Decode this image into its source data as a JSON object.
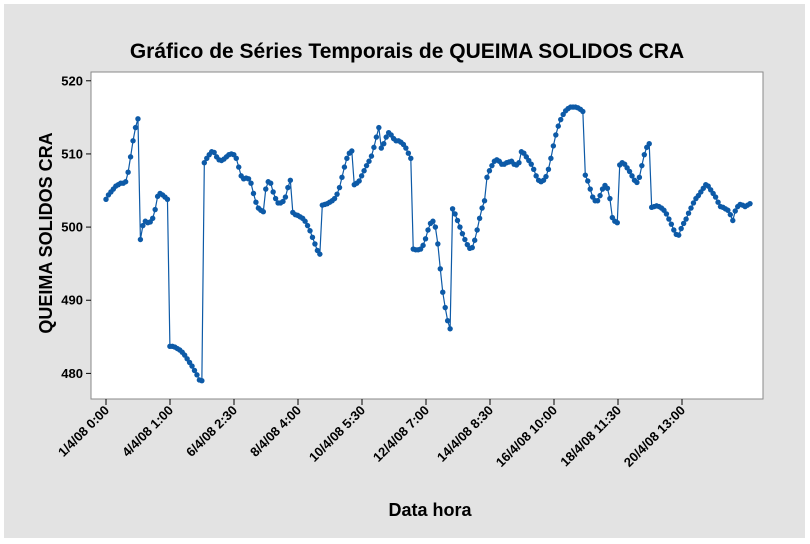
{
  "chart_data": {
    "type": "line",
    "title": "Gráfico de Séries Temporais de QUEIMA SOLIDOS CRA",
    "xlabel": "Data hora",
    "ylabel": "QUEIMA SOLIDOS CRA",
    "ylim": [
      476.5,
      521.2
    ],
    "yticks": [
      480,
      490,
      500,
      510,
      520
    ],
    "xticks": [
      "1/4/08 0:00",
      "4/4/08 1:00",
      "6/4/08 2:30",
      "8/4/08 4:00",
      "10/4/08 5:30",
      "12/4/08 7:00",
      "14/4/08 8:30",
      "16/4/08 10:00",
      "18/4/08 11:30",
      "20/4/08 13:00"
    ],
    "grid": false,
    "legend": "none",
    "marker": "circle",
    "series": [
      {
        "color": "#0d5aa7",
        "values": [
          503.8,
          504.4,
          504.8,
          505.2,
          505.6,
          505.8,
          506,
          506,
          506.2,
          507.5,
          509.6,
          511.8,
          513.6,
          514.8,
          498.3,
          500.2,
          500.8,
          500.6,
          500.7,
          501.2,
          502.4,
          504.2,
          504.6,
          504.4,
          504.1,
          503.8,
          483.7,
          483.7,
          483.6,
          483.4,
          483.2,
          482.9,
          482.5,
          482,
          481.5,
          481,
          480.4,
          479.8,
          479.1,
          479,
          508.8,
          509.4,
          509.9,
          510.3,
          510.2,
          509.6,
          509.2,
          509.1,
          509.3,
          509.6,
          509.9,
          510,
          509.9,
          509.4,
          508.2,
          507,
          506.6,
          506.7,
          506.6,
          506,
          504.6,
          503.4,
          502.6,
          502.3,
          502.1,
          505.2,
          506.2,
          506,
          504.8,
          503.9,
          503.3,
          503.3,
          503.5,
          504.1,
          505.4,
          506.4,
          502,
          501.7,
          501.6,
          501.4,
          501.2,
          500.8,
          500.2,
          499.5,
          498.6,
          497.7,
          496.8,
          496.3,
          503,
          503.1,
          503.2,
          503.4,
          503.6,
          503.9,
          504.5,
          505.4,
          506.8,
          508.2,
          509.4,
          510.1,
          510.4,
          505.8,
          506,
          506.3,
          507,
          507.7,
          508.4,
          509,
          509.7,
          510.9,
          512.3,
          513.6,
          510.8,
          511.4,
          512.3,
          512.9,
          512.6,
          512.1,
          511.8,
          511.8,
          511.6,
          511.3,
          510.8,
          510.1,
          509.4,
          497,
          496.9,
          496.9,
          497,
          497.5,
          498.4,
          499.6,
          500.5,
          500.8,
          500,
          497.7,
          494.3,
          491.1,
          489,
          487.2,
          486.1,
          502.5,
          501.8,
          500.9,
          500,
          499.1,
          498.3,
          497.6,
          497.1,
          497.2,
          498.2,
          499.6,
          501.2,
          502.6,
          503.6,
          506.8,
          507.7,
          508.4,
          509,
          509.2,
          509,
          508.6,
          508.6,
          508.8,
          508.9,
          509,
          508.6,
          508.5,
          508.8,
          510.3,
          510.1,
          509.6,
          509.1,
          508.6,
          507.9,
          507,
          506.4,
          506.2,
          506.4,
          506.9,
          507.9,
          509.4,
          511.1,
          512.6,
          513.8,
          514.7,
          515.4,
          515.9,
          516.2,
          516.4,
          516.4,
          516.4,
          516.3,
          516.1,
          515.8,
          507.1,
          506.3,
          505.2,
          504.1,
          503.6,
          503.6,
          504.3,
          505.2,
          505.7,
          505.3,
          503.9,
          501.3,
          500.8,
          500.6,
          508.5,
          508.8,
          508.6,
          508.1,
          507.6,
          507,
          506.4,
          506.1,
          506.8,
          508.4,
          509.9,
          510.9,
          511.4,
          502.7,
          502.8,
          502.9,
          502.8,
          502.6,
          502.3,
          501.8,
          501.1,
          500.4,
          499.6,
          499,
          498.9,
          499.8,
          500.5,
          501.1,
          501.9,
          502.6,
          503.3,
          503.9,
          504.3,
          504.8,
          505.3,
          505.8,
          505.6,
          505.1,
          504.6,
          504.1,
          503.4,
          502.8,
          502.7,
          502.5,
          502.3,
          501.7,
          500.9,
          502.2,
          502.8,
          503.1,
          503,
          502.8,
          503,
          503.2
        ]
      }
    ]
  }
}
